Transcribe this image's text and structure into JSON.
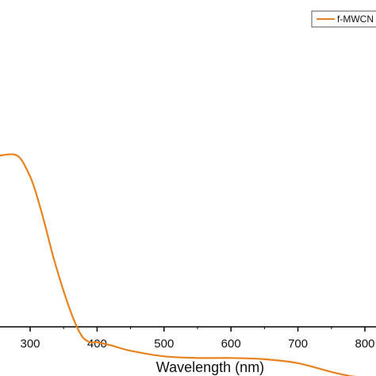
{
  "chart_data": {
    "type": "line",
    "title": "",
    "xlabel": "Wavelength (nm)",
    "ylabel": "",
    "xlim": [
      200,
      850
    ],
    "x_ticks": [
      300,
      400,
      500,
      600,
      700,
      800
    ],
    "x_tick_labels": [
      "300",
      "400",
      "500",
      "600",
      "700",
      "800"
    ],
    "grid": false,
    "legend": {
      "position": "top-right",
      "entries": [
        "f-MWCN"
      ]
    },
    "series": [
      {
        "name": "f-MWCN",
        "color": "#E8821E",
        "x": [
          200,
          220,
          240,
          260,
          275,
          285,
          295,
          305,
          320,
          335,
          350,
          365,
          378,
          390,
          400,
          420,
          450,
          500,
          550,
          600,
          650,
          700,
          750,
          780,
          800,
          840
        ],
        "y": [
          0.98,
          0.99,
          1.0,
          1.008,
          1.01,
          0.999,
          0.964,
          0.916,
          0.811,
          0.693,
          0.591,
          0.504,
          0.451,
          0.434,
          0.434,
          0.425,
          0.408,
          0.391,
          0.386,
          0.386,
          0.382,
          0.37,
          0.343,
          0.33,
          0.326,
          0.326
        ]
      }
    ],
    "ylim": [
      0,
      1.6
    ]
  }
}
